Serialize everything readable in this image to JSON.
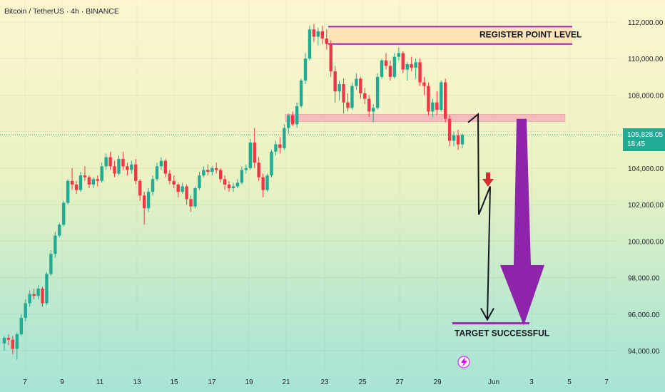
{
  "header": {
    "symbol_title": "Bitcoin / TetherUS · 4h · BINANCE"
  },
  "price_badge": {
    "price": "105,828.05",
    "countdown": "18:45",
    "color": "#22ab94"
  },
  "annotations": {
    "register_level_label": "REGISTER POINT LEVEL",
    "target_label": "TARGET SUCCESSFUL",
    "register_zone": {
      "low": 110800,
      "high": 111750
    },
    "resistance_zone": {
      "low": 106550,
      "high": 106950
    },
    "target_level": 95500,
    "arrow_color": "#8e24aa",
    "zone_border_color": "#9c27b0",
    "down_marker_color": "#d32f2f"
  },
  "lightning_icon": "lightning-icon",
  "chart_data": {
    "type": "candlestick",
    "title": "Bitcoin / TetherUS · 4h · BINANCE",
    "y_ticks": [
      112000,
      110000,
      108000,
      106000,
      104000,
      102000,
      100000,
      98000,
      96000,
      94000
    ],
    "y_tick_labels": [
      "112,000.00",
      "110,000.00",
      "108,000.00",
      "106,000.00",
      "104,000.00",
      "102,000.00",
      "100,000.00",
      "98,000.00",
      "96,000.00",
      "94,000.00"
    ],
    "ylim": [
      93300,
      112900
    ],
    "x_tick_labels": [
      "7",
      "9",
      "11",
      "13",
      "15",
      "17",
      "19",
      "21",
      "23",
      "25",
      "27",
      "29",
      "Jun",
      "3",
      "5",
      "7"
    ],
    "last_price": 105828.05,
    "up_color": "#22ab94",
    "down_color": "#f23645",
    "trend_path": [
      106950,
      102600,
      103000,
      95700
    ],
    "candles": [
      [
        94400,
        94800,
        94000,
        94700
      ],
      [
        94700,
        94900,
        94300,
        94600
      ],
      [
        94600,
        94800,
        93800,
        94100
      ],
      [
        94100,
        95000,
        93500,
        94900
      ],
      [
        94900,
        96000,
        94800,
        95800
      ],
      [
        95800,
        96800,
        95600,
        96600
      ],
      [
        96600,
        97300,
        96400,
        97100
      ],
      [
        97100,
        97400,
        96800,
        97000
      ],
      [
        97000,
        97600,
        96800,
        97400
      ],
      [
        97400,
        97500,
        96400,
        96600
      ],
      [
        96600,
        98300,
        96500,
        98200
      ],
      [
        98200,
        99500,
        98100,
        99300
      ],
      [
        99300,
        100500,
        99100,
        100300
      ],
      [
        100300,
        101000,
        100200,
        100900
      ],
      [
        100900,
        102200,
        100800,
        102100
      ],
      [
        102100,
        103400,
        102000,
        103300
      ],
      [
        103300,
        104000,
        102800,
        103100
      ],
      [
        103100,
        103300,
        102600,
        102800
      ],
      [
        102800,
        103800,
        102700,
        103600
      ],
      [
        103600,
        104100,
        103300,
        103500
      ],
      [
        103500,
        103600,
        102900,
        103100
      ],
      [
        103100,
        103500,
        102900,
        103400
      ],
      [
        103400,
        103600,
        103000,
        103300
      ],
      [
        103300,
        104300,
        103200,
        104100
      ],
      [
        104100,
        104800,
        103900,
        104600
      ],
      [
        104600,
        104900,
        103900,
        104100
      ],
      [
        104100,
        104400,
        103500,
        103700
      ],
      [
        103700,
        104700,
        103600,
        104500
      ],
      [
        104500,
        104900,
        103900,
        104100
      ],
      [
        104100,
        104300,
        103600,
        103900
      ],
      [
        103900,
        104400,
        103700,
        104200
      ],
      [
        104200,
        104500,
        103100,
        103300
      ],
      [
        103300,
        103400,
        102200,
        102500
      ],
      [
        102500,
        102700,
        100900,
        101800
      ],
      [
        101800,
        102900,
        101600,
        102700
      ],
      [
        102700,
        103600,
        102500,
        103400
      ],
      [
        103400,
        104300,
        103300,
        104100
      ],
      [
        104100,
        104600,
        103900,
        104400
      ],
      [
        104400,
        104500,
        103500,
        103700
      ],
      [
        103700,
        103900,
        103100,
        103300
      ],
      [
        103300,
        103600,
        102900,
        103100
      ],
      [
        103100,
        103200,
        102400,
        102700
      ],
      [
        102700,
        103200,
        102600,
        103000
      ],
      [
        103000,
        103100,
        102000,
        102300
      ],
      [
        102300,
        102500,
        101600,
        101900
      ],
      [
        101900,
        103000,
        101800,
        102900
      ],
      [
        102900,
        103800,
        102800,
        103600
      ],
      [
        103600,
        104100,
        103500,
        103900
      ],
      [
        103900,
        104200,
        103600,
        103800
      ],
      [
        103800,
        104100,
        103600,
        104000
      ],
      [
        104000,
        104300,
        103700,
        103900
      ],
      [
        103900,
        104000,
        103200,
        103400
      ],
      [
        103400,
        103600,
        102800,
        103100
      ],
      [
        103100,
        103300,
        102700,
        102900
      ],
      [
        102900,
        103200,
        102700,
        103000
      ],
      [
        103000,
        103400,
        102900,
        103200
      ],
      [
        103200,
        104100,
        103100,
        103900
      ],
      [
        103900,
        104200,
        103700,
        104000
      ],
      [
        104000,
        105600,
        103900,
        105400
      ],
      [
        105400,
        106200,
        104000,
        104300
      ],
      [
        104300,
        104600,
        103300,
        103500
      ],
      [
        103500,
        103700,
        102400,
        102800
      ],
      [
        102800,
        103700,
        102700,
        103600
      ],
      [
        103600,
        105000,
        103500,
        104900
      ],
      [
        104900,
        105500,
        104700,
        105300
      ],
      [
        105300,
        105700,
        104800,
        105100
      ],
      [
        105100,
        106400,
        105000,
        106200
      ],
      [
        106200,
        107000,
        105900,
        106900
      ],
      [
        106900,
        107100,
        106300,
        106400
      ],
      [
        106400,
        107600,
        106200,
        107400
      ],
      [
        107400,
        108900,
        107300,
        108800
      ],
      [
        108800,
        110300,
        108600,
        110000
      ],
      [
        110000,
        111800,
        109900,
        111600
      ],
      [
        111600,
        111900,
        110900,
        111200
      ],
      [
        111200,
        111700,
        110700,
        111500
      ],
      [
        111500,
        111800,
        110800,
        111100
      ],
      [
        111100,
        111600,
        110500,
        110800
      ],
      [
        110800,
        111000,
        109000,
        109300
      ],
      [
        109300,
        109600,
        107600,
        108200
      ],
      [
        108200,
        108800,
        107700,
        108600
      ],
      [
        108600,
        108900,
        107000,
        107600
      ],
      [
        107600,
        108100,
        107100,
        107300
      ],
      [
        107300,
        108700,
        107200,
        108500
      ],
      [
        108500,
        109200,
        108300,
        108900
      ],
      [
        108900,
        109000,
        107800,
        108100
      ],
      [
        108100,
        108400,
        107500,
        107800
      ],
      [
        107800,
        108000,
        106800,
        107100
      ],
      [
        107100,
        107500,
        106500,
        107300
      ],
      [
        107300,
        109200,
        107200,
        109000
      ],
      [
        109000,
        110000,
        108900,
        109900
      ],
      [
        109900,
        110300,
        109400,
        109600
      ],
      [
        109600,
        109900,
        108800,
        109000
      ],
      [
        109000,
        110300,
        108900,
        110100
      ],
      [
        110100,
        110600,
        109900,
        110300
      ],
      [
        110300,
        110400,
        109200,
        109400
      ],
      [
        109400,
        109800,
        108800,
        109700
      ],
      [
        109700,
        110100,
        109300,
        109500
      ],
      [
        109500,
        110000,
        108900,
        109800
      ],
      [
        109800,
        110000,
        108500,
        108700
      ],
      [
        108700,
        109000,
        108000,
        108500
      ],
      [
        108500,
        108700,
        106900,
        107100
      ],
      [
        107100,
        107800,
        106800,
        107600
      ],
      [
        107600,
        108200,
        106900,
        107200
      ],
      [
        107200,
        108800,
        107100,
        108700
      ],
      [
        108700,
        108900,
        106500,
        106700
      ],
      [
        106700,
        106900,
        105200,
        105500
      ],
      [
        105500,
        106000,
        105200,
        105800
      ],
      [
        105800,
        106100,
        105000,
        105300
      ],
      [
        105300,
        105900,
        105100,
        105828
      ]
    ]
  }
}
